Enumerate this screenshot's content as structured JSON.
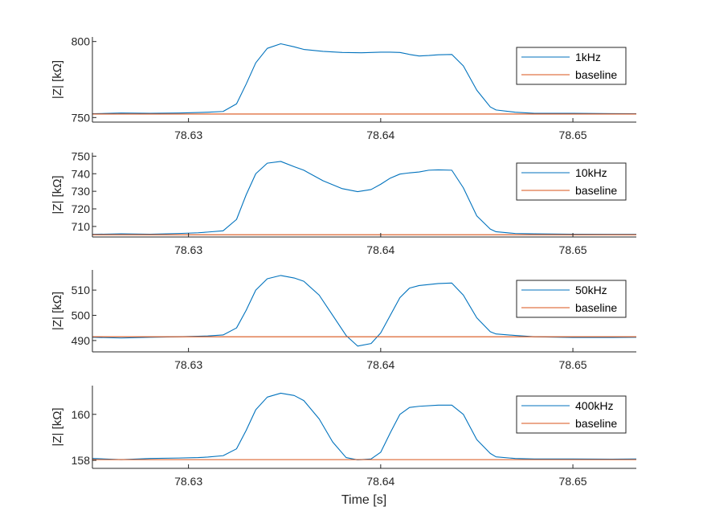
{
  "figure": {
    "xlabel": "Time [s]"
  },
  "chart_data": [
    {
      "type": "line",
      "ylabel": "|Z| [kΩ]",
      "xlim": [
        78.625,
        78.6533
      ],
      "ylim": [
        747,
        803
      ],
      "x_ticks": [
        78.63,
        78.64,
        78.65
      ],
      "x_tick_labels": [
        "78.63",
        "78.64",
        "78.65"
      ],
      "y_ticks": [
        750,
        800
      ],
      "y_tick_labels": [
        "750",
        "800"
      ],
      "legend_position": "top-right",
      "series": [
        {
          "name": "1kHz",
          "color": "#0072BD",
          "x": [
            78.625,
            78.6265,
            78.628,
            78.6295,
            78.6305,
            78.631,
            78.6318,
            78.6325,
            78.633,
            78.6335,
            78.6341,
            78.6348,
            78.6355,
            78.636,
            78.637,
            78.638,
            78.639,
            78.6395,
            78.64,
            78.6405,
            78.641,
            78.6415,
            78.642,
            78.6425,
            78.643,
            78.6437,
            78.6443,
            78.645,
            78.6457,
            78.646,
            78.647,
            78.648,
            78.65,
            78.652,
            78.6533
          ],
          "y": [
            752.5,
            753.0,
            752.8,
            753.0,
            753.3,
            753.5,
            754.0,
            759.0,
            772.0,
            786.0,
            795.5,
            798.5,
            796.5,
            794.8,
            793.5,
            792.8,
            792.6,
            792.8,
            793.0,
            793.0,
            792.8,
            791.5,
            790.5,
            790.8,
            791.3,
            791.5,
            784.0,
            768.0,
            757.0,
            755.0,
            753.5,
            752.8,
            752.8,
            752.6,
            752.5
          ]
        },
        {
          "name": "baseline",
          "color": "#D95319",
          "x": [
            78.625,
            78.6533
          ],
          "y": [
            752.3,
            752.3
          ]
        }
      ]
    },
    {
      "type": "line",
      "ylabel": "|Z| [kΩ]",
      "xlim": [
        78.625,
        78.6533
      ],
      "ylim": [
        704,
        752
      ],
      "x_ticks": [
        78.63,
        78.64,
        78.65
      ],
      "x_tick_labels": [
        "78.63",
        "78.64",
        "78.65"
      ],
      "y_ticks": [
        710,
        720,
        730,
        740,
        750
      ],
      "y_tick_labels": [
        "710",
        "720",
        "730",
        "740",
        "750"
      ],
      "legend_position": "top-right",
      "series": [
        {
          "name": "10kHz",
          "color": "#0072BD",
          "x": [
            78.625,
            78.6265,
            78.628,
            78.6295,
            78.6305,
            78.631,
            78.6318,
            78.6325,
            78.633,
            78.6335,
            78.6341,
            78.6348,
            78.6355,
            78.636,
            78.637,
            78.638,
            78.6388,
            78.6395,
            78.64,
            78.6405,
            78.641,
            78.6415,
            78.642,
            78.6425,
            78.643,
            78.6437,
            78.6443,
            78.645,
            78.6457,
            78.646,
            78.647,
            78.648,
            78.65,
            78.652,
            78.6533
          ],
          "y": [
            705.5,
            705.8,
            705.6,
            706.0,
            706.4,
            706.8,
            707.5,
            714.0,
            728.0,
            740.0,
            746.0,
            747.0,
            744.0,
            742.0,
            736.0,
            731.5,
            729.8,
            731.0,
            734.0,
            737.5,
            739.8,
            740.5,
            741.0,
            742.0,
            742.2,
            742.0,
            732.0,
            716.0,
            708.5,
            707.0,
            706.0,
            705.8,
            705.6,
            705.5,
            705.5
          ]
        },
        {
          "name": "baseline",
          "color": "#D95319",
          "x": [
            78.625,
            78.6533
          ],
          "y": [
            705.3,
            705.3
          ]
        }
      ]
    },
    {
      "type": "line",
      "ylabel": "|Z| [kΩ]",
      "xlim": [
        78.625,
        78.6533
      ],
      "ylim": [
        485.5,
        518
      ],
      "x_ticks": [
        78.63,
        78.64,
        78.65
      ],
      "x_tick_labels": [
        "78.63",
        "78.64",
        "78.65"
      ],
      "y_ticks": [
        490,
        500,
        510
      ],
      "y_tick_labels": [
        "490",
        "500",
        "510"
      ],
      "legend_position": "top-right",
      "series": [
        {
          "name": "50kHz",
          "color": "#0072BD",
          "x": [
            78.625,
            78.6265,
            78.628,
            78.6295,
            78.6305,
            78.631,
            78.6318,
            78.6325,
            78.633,
            78.6335,
            78.6341,
            78.6348,
            78.6355,
            78.636,
            78.6368,
            78.6375,
            78.6382,
            78.6388,
            78.6395,
            78.64,
            78.6405,
            78.641,
            78.6415,
            78.642,
            78.643,
            78.6437,
            78.6443,
            78.645,
            78.6457,
            78.646,
            78.647,
            78.648,
            78.65,
            78.652,
            78.6533
          ],
          "y": [
            491.3,
            491.0,
            491.3,
            491.5,
            491.7,
            491.8,
            492.2,
            495.0,
            502.0,
            510.0,
            514.5,
            515.8,
            514.8,
            513.5,
            508.0,
            500.0,
            492.0,
            487.8,
            488.8,
            493.0,
            500.0,
            507.0,
            510.8,
            511.8,
            512.6,
            512.8,
            508.0,
            499.0,
            493.5,
            492.6,
            492.0,
            491.5,
            491.2,
            491.2,
            491.3
          ]
        },
        {
          "name": "baseline",
          "color": "#D95319",
          "x": [
            78.625,
            78.6533
          ],
          "y": [
            491.5,
            491.5
          ]
        }
      ]
    },
    {
      "type": "line",
      "ylabel": "|Z| [kΩ]",
      "xlim": [
        78.625,
        78.6533
      ],
      "ylim": [
        157.65,
        161.25
      ],
      "x_ticks": [
        78.63,
        78.64,
        78.65
      ],
      "x_tick_labels": [
        "78.63",
        "78.64",
        "78.65"
      ],
      "y_ticks": [
        158,
        160
      ],
      "y_tick_labels": [
        "158",
        "160"
      ],
      "legend_position": "top-right",
      "series": [
        {
          "name": "400kHz",
          "color": "#0072BD",
          "x": [
            78.625,
            78.6265,
            78.628,
            78.6295,
            78.6305,
            78.631,
            78.6318,
            78.6325,
            78.633,
            78.6335,
            78.6341,
            78.6348,
            78.6355,
            78.636,
            78.6368,
            78.6375,
            78.6382,
            78.6388,
            78.6395,
            78.64,
            78.6405,
            78.641,
            78.6415,
            78.642,
            78.643,
            78.6437,
            78.6443,
            78.645,
            78.6457,
            78.646,
            78.647,
            78.648,
            78.65,
            78.652,
            78.6533
          ],
          "y": [
            158.08,
            158.03,
            158.08,
            158.1,
            158.12,
            158.14,
            158.2,
            158.5,
            159.3,
            160.2,
            160.75,
            160.92,
            160.82,
            160.6,
            159.8,
            158.8,
            158.12,
            158.02,
            158.06,
            158.35,
            159.2,
            160.0,
            160.3,
            160.35,
            160.4,
            160.4,
            160.0,
            158.9,
            158.3,
            158.15,
            158.08,
            158.06,
            158.06,
            158.05,
            158.06
          ]
        },
        {
          "name": "baseline",
          "color": "#D95319",
          "x": [
            78.625,
            78.6533
          ],
          "y": [
            158.03,
            158.03
          ]
        }
      ]
    }
  ]
}
